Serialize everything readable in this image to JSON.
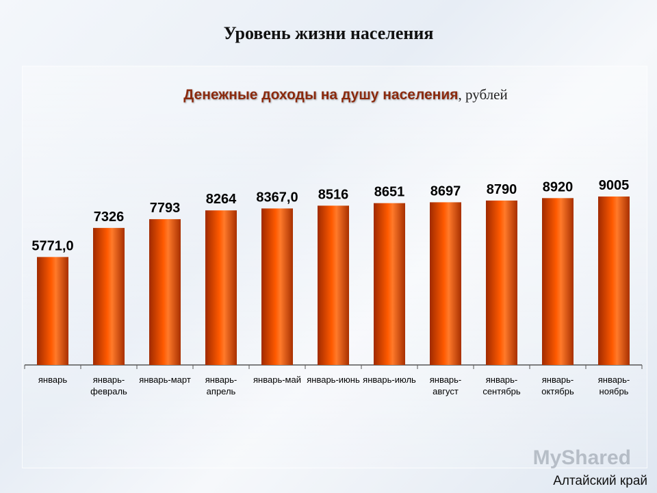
{
  "page": {
    "title": "Уровень жизни населения",
    "region": "Алтайский край",
    "watermark": "MyShared"
  },
  "chart_data": {
    "type": "bar",
    "title": "Денежные доходы на душу населения",
    "unit": ", рублей",
    "categories": [
      [
        "январь"
      ],
      [
        "январь-",
        "февраль"
      ],
      [
        "январь-март"
      ],
      [
        "январь-",
        "апрель"
      ],
      [
        "январь-май"
      ],
      [
        "январь-июнь"
      ],
      [
        "январь-июль"
      ],
      [
        "январь-",
        "август"
      ],
      [
        "январь-",
        "сентябрь"
      ],
      [
        "январь-",
        "октябрь"
      ],
      [
        "январь-",
        "ноябрь"
      ]
    ],
    "values": [
      5771.0,
      7326,
      7793,
      8264,
      8367.0,
      8516,
      8651,
      8697,
      8790,
      8920,
      9005
    ],
    "value_labels": [
      "5771,0",
      "7326",
      "7793",
      "8264",
      "8367,0",
      "8516",
      "8651",
      "8697",
      "8790",
      "8920",
      "9005"
    ],
    "ylim": [
      0,
      9005
    ],
    "bar_color": "#ff5a00",
    "grid": false
  }
}
